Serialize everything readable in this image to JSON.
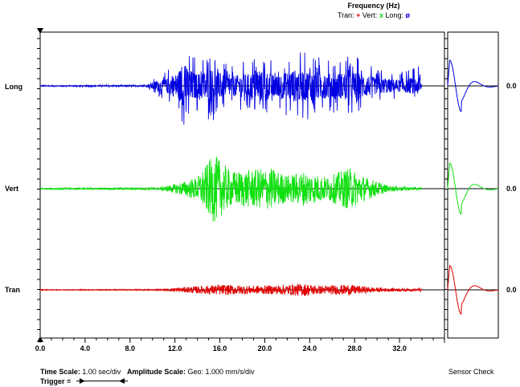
{
  "legend": {
    "title": "Frequency (Hz)",
    "items": [
      {
        "label": "Tran:",
        "symbol": "+"
      },
      {
        "label": "Vert:",
        "symbol": "x"
      },
      {
        "label": "Long:",
        "symbol": "ø"
      }
    ]
  },
  "footer": {
    "time_scale_label": "Time Scale:",
    "time_scale_value": "1.00 sec/div",
    "amplitude_label": "Amplitude Scale:",
    "amplitude_value": "Geo: 1.000 mm/s/div",
    "trigger_label": "Trigger =",
    "sensor_check": "Sensor Check"
  },
  "colors": {
    "tran": "#e00000",
    "vert": "#10e010",
    "long": "#0000e0"
  },
  "chart_data": {
    "type": "line",
    "xlim": [
      0,
      36
    ],
    "x_ticks": [
      "0.0",
      "4.0",
      "8.0",
      "12.0",
      "16.0",
      "20.0",
      "24.0",
      "28.0",
      "32.0"
    ],
    "x_tick_values": [
      0,
      4,
      8,
      12,
      16,
      20,
      24,
      28,
      32
    ],
    "data_end": 34,
    "series": [
      {
        "name": "Long",
        "zero_label": "0.0",
        "envelope": [
          {
            "t": 0,
            "a": 0.02
          },
          {
            "t": 9.5,
            "a": 0.03
          },
          {
            "t": 10,
            "a": 0.18
          },
          {
            "t": 11,
            "a": 0.3
          },
          {
            "t": 12,
            "a": 0.55
          },
          {
            "t": 12.7,
            "a": 1.0
          },
          {
            "t": 14,
            "a": 0.6
          },
          {
            "t": 15.2,
            "a": 0.85
          },
          {
            "t": 16.5,
            "a": 0.5
          },
          {
            "t": 18,
            "a": 0.55
          },
          {
            "t": 20,
            "a": 0.75
          },
          {
            "t": 21,
            "a": 0.5
          },
          {
            "t": 22.5,
            "a": 0.8
          },
          {
            "t": 24,
            "a": 0.75
          },
          {
            "t": 26,
            "a": 0.6
          },
          {
            "t": 28,
            "a": 0.7
          },
          {
            "t": 30,
            "a": 0.4
          },
          {
            "t": 32,
            "a": 0.3
          },
          {
            "t": 33.8,
            "a": 0.45
          },
          {
            "t": 34,
            "a": 0.02
          }
        ]
      },
      {
        "name": "Vert",
        "zero_label": "0.0",
        "envelope": [
          {
            "t": 0,
            "a": 0.02
          },
          {
            "t": 10.5,
            "a": 0.03
          },
          {
            "t": 12,
            "a": 0.12
          },
          {
            "t": 14,
            "a": 0.3
          },
          {
            "t": 15.5,
            "a": 0.9
          },
          {
            "t": 17,
            "a": 0.45
          },
          {
            "t": 19,
            "a": 0.5
          },
          {
            "t": 20.5,
            "a": 0.55
          },
          {
            "t": 22,
            "a": 0.35
          },
          {
            "t": 23.5,
            "a": 0.45
          },
          {
            "t": 25.5,
            "a": 0.3
          },
          {
            "t": 27.5,
            "a": 0.55
          },
          {
            "t": 29,
            "a": 0.3
          },
          {
            "t": 31,
            "a": 0.08
          },
          {
            "t": 34,
            "a": 0.03
          }
        ]
      },
      {
        "name": "Tran",
        "zero_label": "0.0",
        "envelope": [
          {
            "t": 0,
            "a": 0.02
          },
          {
            "t": 11,
            "a": 0.03
          },
          {
            "t": 12,
            "a": 0.1
          },
          {
            "t": 14,
            "a": 0.18
          },
          {
            "t": 16,
            "a": 0.25
          },
          {
            "t": 19,
            "a": 0.2
          },
          {
            "t": 21,
            "a": 0.22
          },
          {
            "t": 23.5,
            "a": 0.3
          },
          {
            "t": 25,
            "a": 0.2
          },
          {
            "t": 27.5,
            "a": 0.25
          },
          {
            "t": 30,
            "a": 0.1
          },
          {
            "t": 33.5,
            "a": 0.05
          },
          {
            "t": 33.8,
            "a": 0.12
          },
          {
            "t": 34,
            "a": 0.02
          }
        ]
      }
    ]
  }
}
